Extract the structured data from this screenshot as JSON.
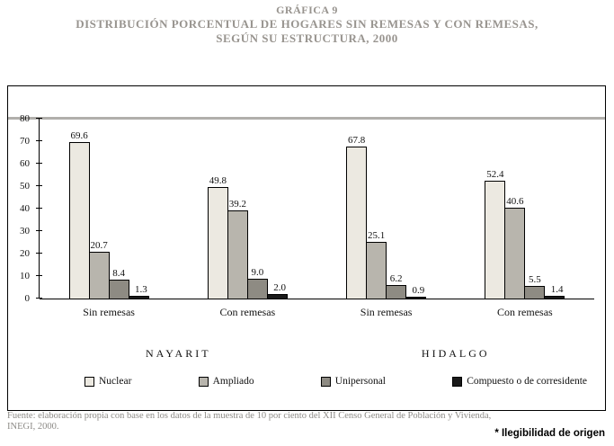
{
  "title": {
    "line1": "GRÁFICA 9",
    "line2": "DISTRIBUCIÓN PORCENTUAL DE HOGARES SIN REMESAS Y CON REMESAS,",
    "line3": "SEGÚN SU ESTRUCTURA, 2000"
  },
  "chart_data": {
    "type": "bar",
    "ylim": [
      0,
      80
    ],
    "y_ticks": [
      0,
      10,
      20,
      30,
      40,
      50,
      60,
      70,
      80
    ],
    "grid": "off",
    "legend_position": "bottom",
    "series": [
      {
        "name": "Nuclear",
        "color": "#ece9e1"
      },
      {
        "name": "Ampliado",
        "color": "#b8b5ad"
      },
      {
        "name": "Unipersonal",
        "color": "#8e8b83"
      },
      {
        "name": "Compuesto o de corresidente",
        "color": "#1a1a1a"
      }
    ],
    "groups": [
      {
        "label": "Sin remesas",
        "state": "NAYARIT",
        "values": [
          69.6,
          20.7,
          8.4,
          1.3
        ]
      },
      {
        "label": "Con remesas",
        "state": "NAYARIT",
        "values": [
          49.8,
          39.2,
          9.0,
          2.0
        ]
      },
      {
        "label": "Sin remesas",
        "state": "HIDALGO",
        "values": [
          67.8,
          25.1,
          6.2,
          0.9
        ]
      },
      {
        "label": "Con remesas",
        "state": "HIDALGO",
        "values": [
          52.4,
          40.6,
          5.5,
          1.4
        ]
      }
    ],
    "state_labels": [
      "NAYARIT",
      "HIDALGO"
    ]
  },
  "footer": {
    "source_line1": "Fuente: elaboración propia con base en los datos de la muestra de 10 por ciento del XII Censo General de Población y Vivienda,",
    "source_line2": "INEGI, 2000.",
    "note": "* Ilegibilidad de origen"
  }
}
